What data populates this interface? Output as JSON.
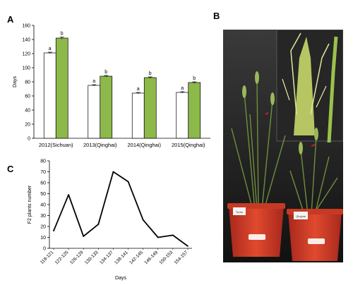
{
  "panels": {
    "a": "A",
    "b": "B",
    "c": "C"
  },
  "chart_data": [
    {
      "type": "bar",
      "ylabel": "Days",
      "ylim": [
        0,
        160
      ],
      "yticks": [
        "0",
        "20",
        "40",
        "60",
        "80",
        "100",
        "120",
        "140",
        "160"
      ],
      "categories": [
        "2012(Sichuan)",
        "2013(Qinghai)",
        "2014(Qinghai)",
        "2015(Qinghai)"
      ],
      "series": [
        {
          "values": [
            121,
            75,
            64,
            65
          ],
          "error": [
            1,
            1,
            1,
            1
          ],
          "color": "#ffffff",
          "labels": [
            "a",
            "a",
            "a",
            "a"
          ]
        },
        {
          "values": [
            142,
            88,
            86,
            79
          ],
          "error": [
            1.5,
            1,
            1,
            1
          ],
          "color": "#8db84a",
          "labels": [
            "b",
            "b",
            "b",
            "b"
          ]
        }
      ]
    },
    {
      "type": "line",
      "xlabel": "Days",
      "ylabel": "F2 plants number",
      "ylim": [
        0,
        80
      ],
      "yticks": [
        "0",
        "10",
        "20",
        "30",
        "40",
        "50",
        "60",
        "70",
        "80"
      ],
      "categories": [
        "118-121",
        "122-125",
        "126-129",
        "130-133",
        "134-137",
        "138-141",
        "142-145",
        "146-149",
        "150-153",
        "154-157"
      ],
      "values": [
        16,
        49,
        11,
        22,
        70,
        61,
        26,
        10,
        12,
        2
      ]
    }
  ],
  "photo": {
    "pot_labels": [
      "Tudor",
      "Qinghai"
    ]
  }
}
